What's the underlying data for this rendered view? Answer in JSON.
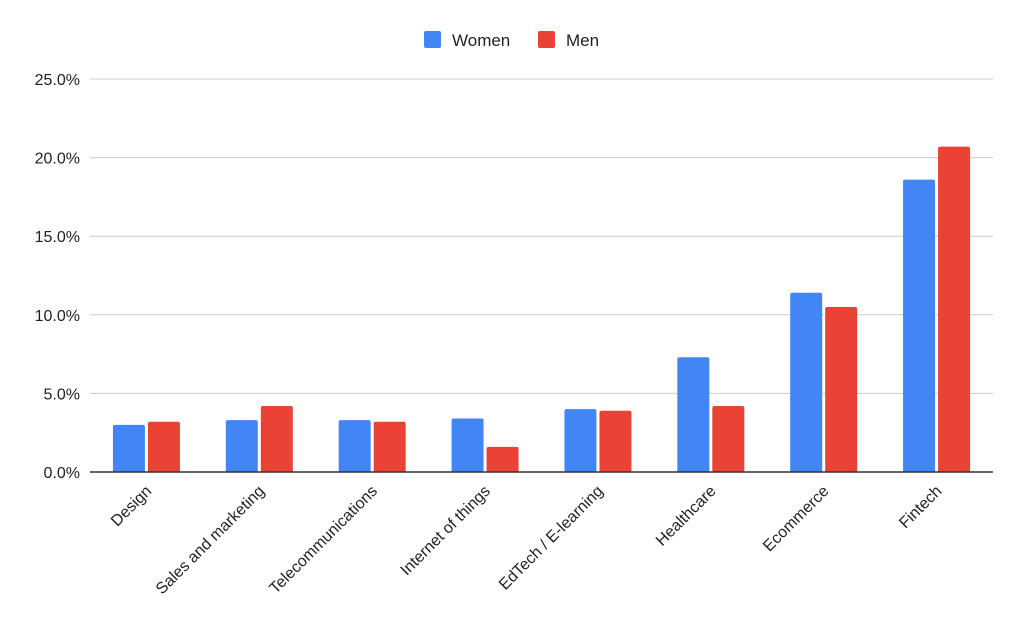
{
  "chart_data": {
    "type": "bar",
    "title": "",
    "xlabel": "",
    "ylabel": "",
    "categories": [
      "Design",
      "Sales and marketing",
      "Telecommunications",
      "Internet of things",
      "EdTech / E-learning",
      "Healthcare",
      "Ecommerce",
      "Fintech"
    ],
    "series": [
      {
        "name": "Women",
        "color": "#4285F4",
        "values": [
          3.0,
          3.3,
          3.3,
          3.4,
          4.0,
          7.3,
          11.4,
          18.6
        ]
      },
      {
        "name": "Men",
        "color": "#EA4335",
        "values": [
          3.2,
          4.2,
          3.2,
          1.6,
          3.9,
          4.2,
          10.5,
          20.7
        ]
      }
    ],
    "ylim": [
      0,
      25
    ],
    "yticks": [
      "0.0%",
      "5.0%",
      "10.0%",
      "15.0%",
      "20.0%",
      "25.0%"
    ],
    "ytick_values": [
      0,
      5,
      10,
      15,
      20,
      25
    ],
    "grid": true,
    "legend_position": "top-center"
  }
}
